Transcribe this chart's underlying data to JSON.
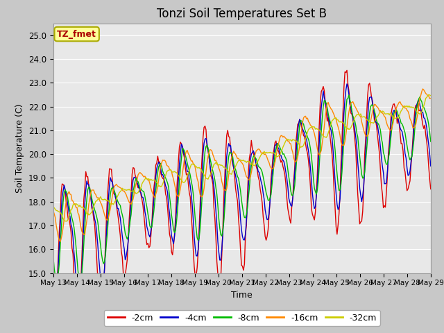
{
  "title": "Tonzi Soil Temperatures Set B",
  "xlabel": "Time",
  "ylabel": "Soil Temperature (C)",
  "ylim": [
    15.0,
    25.5
  ],
  "yticks": [
    15.0,
    16.0,
    17.0,
    18.0,
    19.0,
    20.0,
    21.0,
    22.0,
    23.0,
    24.0,
    25.0
  ],
  "series_labels": [
    "-2cm",
    "-4cm",
    "-8cm",
    "-16cm",
    "-32cm"
  ],
  "series_colors": [
    "#dd0000",
    "#0000cc",
    "#00bb00",
    "#ff8800",
    "#cccc00"
  ],
  "line_widths": [
    1.0,
    1.0,
    1.0,
    1.0,
    1.0
  ],
  "annotation_text": "TZ_fmet",
  "annotation_bg": "#ffff99",
  "annotation_border": "#aaaa00",
  "annotation_text_color": "#aa0000",
  "fig_facecolor": "#c8c8c8",
  "plot_bg_color": "#e8e8e8",
  "grid_color": "#ffffff",
  "n_days": 16,
  "start_day": 13,
  "points_per_day": 24,
  "amplitudes": [
    2.3,
    1.8,
    1.4,
    0.7,
    0.25
  ],
  "phase_lags": [
    0.0,
    0.04,
    0.1,
    0.25,
    0.5
  ],
  "base_temps": [
    16.5,
    16.7,
    16.9,
    17.6,
    17.6
  ],
  "trend_rate": 0.22
}
